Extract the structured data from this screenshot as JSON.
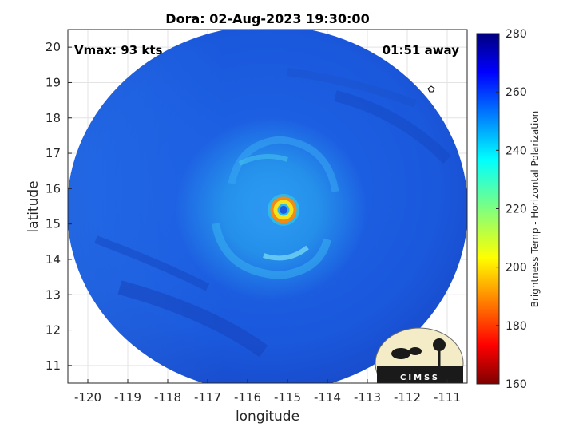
{
  "chart_data": {
    "type": "heatmap",
    "title": "Dora: 02-Aug-2023 19:30:00",
    "xlabel": "longitude",
    "ylabel": "latitude",
    "xlim": [
      -120.5,
      -110.5
    ],
    "ylim": [
      10.5,
      20.5
    ],
    "xticks": [
      -120,
      -119,
      -118,
      -117,
      -116,
      -115,
      -114,
      -113,
      -112,
      -111
    ],
    "yticks": [
      11,
      12,
      13,
      14,
      15,
      16,
      17,
      18,
      19,
      20
    ],
    "grid": true,
    "storm_center": {
      "lon": -115.1,
      "lat": 15.4
    },
    "annotations": {
      "vmax": "Vmax: 93 kts",
      "time_away": "01:51 away"
    },
    "colorbar": {
      "label": "Brightness Temp - Horizontal Polarization",
      "range": [
        160,
        280
      ],
      "ticks": [
        160,
        180,
        200,
        220,
        240,
        260,
        280
      ],
      "colormap": "jet"
    },
    "logo_text": "CIMSS",
    "colors": {
      "background_scene": "#1a5be0",
      "eye": "#1a5be0",
      "eyewall": "#f4e21c",
      "rainband": "#2cb5f0"
    }
  }
}
